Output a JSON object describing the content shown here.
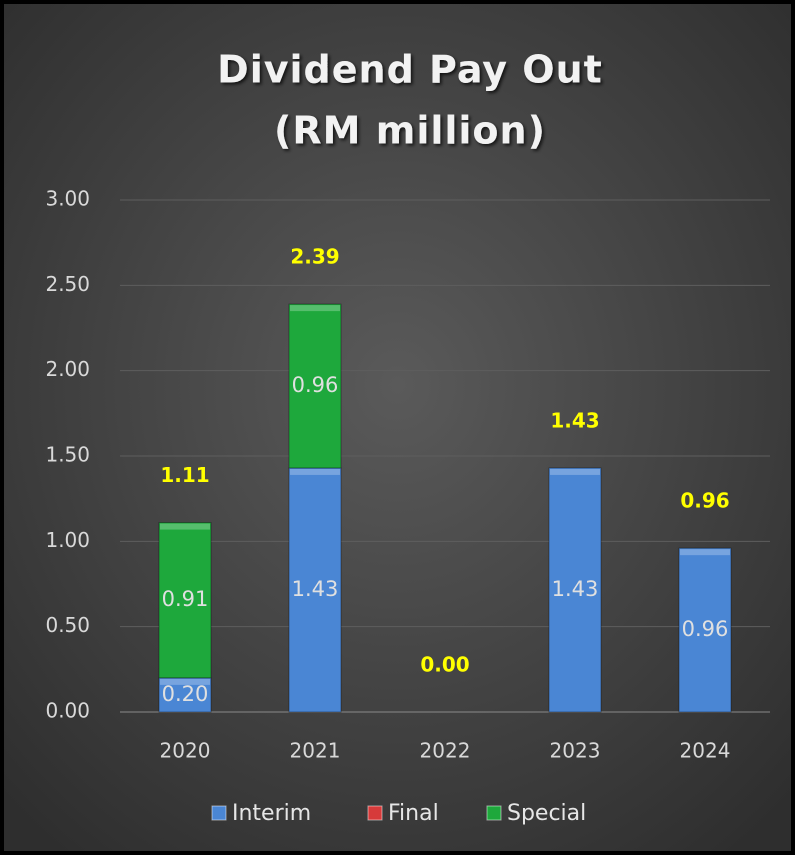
{
  "chart_data": {
    "type": "stacked_bar",
    "title": "Dividend Pay Out",
    "subtitle": "(RM million)",
    "categories": [
      "2020",
      "2021",
      "2022",
      "2023",
      "2024"
    ],
    "series": [
      {
        "name": "Interim",
        "color": "#4a86d4",
        "values": [
          0.2,
          1.43,
          null,
          1.43,
          0.96
        ],
        "value_labels": [
          "0.20",
          "1.43",
          null,
          "1.43",
          "0.96"
        ]
      },
      {
        "name": "Final",
        "color": "#d63a3a",
        "values": [
          null,
          null,
          null,
          null,
          null
        ]
      },
      {
        "name": "Special",
        "color": "#1ea83c",
        "values": [
          0.91,
          0.96,
          null,
          null,
          null
        ],
        "value_labels": [
          "0.91",
          "0.96",
          null,
          null,
          null
        ]
      }
    ],
    "totals": {
      "values": [
        1.11,
        2.39,
        0,
        1.43,
        0.96
      ],
      "value_labels": [
        "1.11",
        "2.39",
        "0.00",
        "1.43",
        "0.96"
      ]
    },
    "ylim": [
      0,
      3
    ],
    "yticks": [
      {
        "value": 0,
        "label": "0.00"
      },
      {
        "value": 0.5,
        "label": "0.50"
      },
      {
        "value": 1,
        "label": "1.00"
      },
      {
        "value": 1.5,
        "label": "1.50"
      },
      {
        "value": 2,
        "label": "2.00"
      },
      {
        "value": 2.5,
        "label": "2.50"
      },
      {
        "value": 3,
        "label": "3.00"
      }
    ],
    "grid": true,
    "legend": "bottom"
  }
}
